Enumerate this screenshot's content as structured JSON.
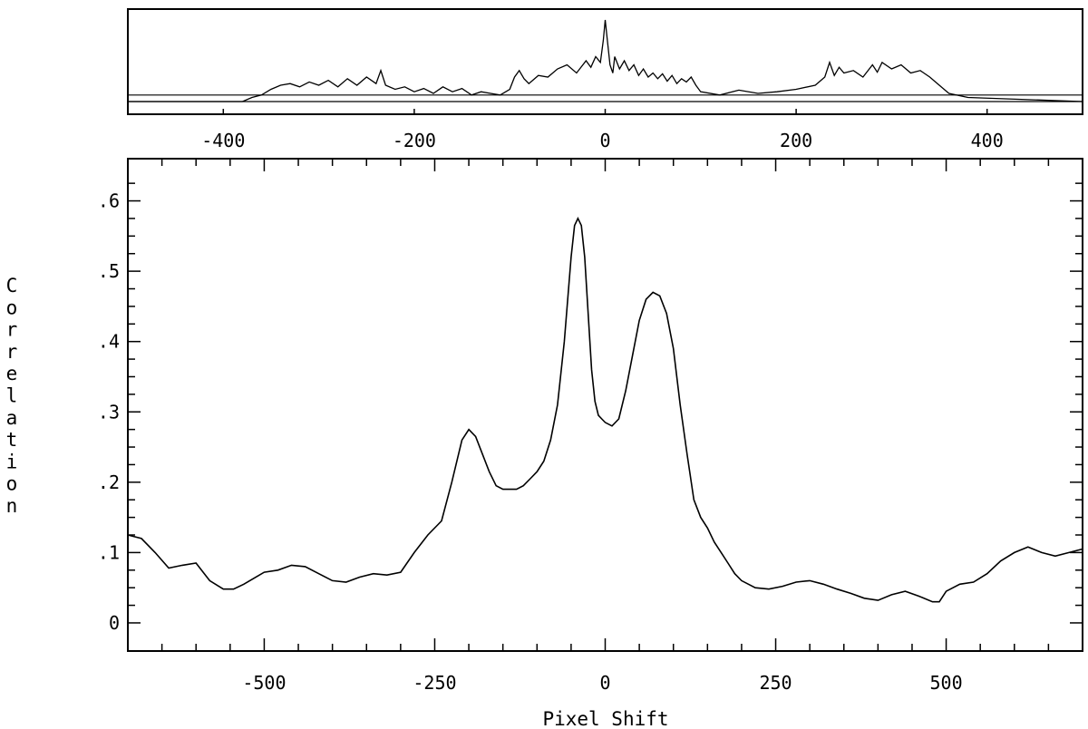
{
  "chart_data": [
    {
      "type": "line",
      "title": "",
      "xlabel": "",
      "ylabel": "",
      "xlim": [
        -500,
        500
      ],
      "x_ticks": [
        "-400",
        "-200",
        "0",
        "200",
        "400"
      ],
      "x_tick_values": [
        -400,
        -200,
        0,
        200,
        400
      ],
      "grid": false,
      "baseline_levels": [
        0.08,
        0.0
      ],
      "series": [
        {
          "x": [
            -500,
            -380,
            -370,
            -360,
            -350,
            -340,
            -330,
            -320,
            -310,
            -300,
            -290,
            -280,
            -270,
            -260,
            -250,
            -240,
            -235,
            -230,
            -220,
            -210,
            -200,
            -190,
            -180,
            -170,
            -160,
            -150,
            -140,
            -130,
            -120,
            -110,
            -100,
            -95,
            -90,
            -85,
            -80,
            -70,
            -60,
            -50,
            -40,
            -30,
            -20,
            -15,
            -10,
            -5,
            -2,
            0,
            2,
            5,
            8,
            10,
            15,
            20,
            25,
            30,
            35,
            40,
            45,
            50,
            55,
            60,
            65,
            70,
            75,
            80,
            85,
            90,
            95,
            100,
            120,
            140,
            160,
            180,
            200,
            220,
            230,
            235,
            240,
            245,
            250,
            260,
            270,
            280,
            285,
            290,
            300,
            310,
            320,
            330,
            340,
            350,
            360,
            380,
            500
          ],
          "values": [
            0.0,
            0.0,
            0.05,
            0.08,
            0.15,
            0.2,
            0.22,
            0.18,
            0.24,
            0.2,
            0.26,
            0.18,
            0.28,
            0.2,
            0.3,
            0.22,
            0.38,
            0.2,
            0.15,
            0.18,
            0.12,
            0.16,
            0.1,
            0.18,
            0.12,
            0.16,
            0.08,
            0.12,
            0.1,
            0.08,
            0.15,
            0.3,
            0.38,
            0.28,
            0.22,
            0.32,
            0.3,
            0.4,
            0.45,
            0.35,
            0.5,
            0.42,
            0.55,
            0.48,
            0.75,
            1.0,
            0.78,
            0.45,
            0.35,
            0.55,
            0.4,
            0.5,
            0.38,
            0.45,
            0.32,
            0.4,
            0.3,
            0.35,
            0.28,
            0.34,
            0.25,
            0.32,
            0.22,
            0.28,
            0.24,
            0.3,
            0.2,
            0.12,
            0.08,
            0.14,
            0.1,
            0.12,
            0.15,
            0.2,
            0.3,
            0.48,
            0.32,
            0.42,
            0.35,
            0.38,
            0.3,
            0.45,
            0.36,
            0.48,
            0.4,
            0.45,
            0.35,
            0.38,
            0.3,
            0.2,
            0.1,
            0.05,
            0.0
          ]
        }
      ]
    },
    {
      "type": "line",
      "title": "",
      "xlabel": "Pixel Shift",
      "ylabel": "Correlation",
      "xlim": [
        -700,
        700
      ],
      "ylim": [
        -0.04,
        0.66
      ],
      "x_ticks": [
        "-500",
        "-250",
        "0",
        "250",
        "500"
      ],
      "x_tick_values": [
        -500,
        -250,
        0,
        250,
        500
      ],
      "y_ticks": [
        "0",
        ".1",
        ".2",
        ".3",
        ".4",
        ".5",
        ".6"
      ],
      "y_tick_values": [
        0,
        0.1,
        0.2,
        0.3,
        0.4,
        0.5,
        0.6
      ],
      "grid": false,
      "series": [
        {
          "x": [
            -700,
            -680,
            -660,
            -640,
            -620,
            -600,
            -580,
            -560,
            -545,
            -530,
            -500,
            -480,
            -460,
            -440,
            -420,
            -400,
            -380,
            -360,
            -340,
            -320,
            -300,
            -280,
            -260,
            -240,
            -225,
            -210,
            -200,
            -190,
            -180,
            -170,
            -160,
            -150,
            -140,
            -130,
            -120,
            -110,
            -100,
            -90,
            -80,
            -70,
            -60,
            -50,
            -45,
            -40,
            -35,
            -30,
            -25,
            -20,
            -15,
            -10,
            -5,
            0,
            10,
            20,
            30,
            40,
            50,
            60,
            70,
            80,
            90,
            100,
            110,
            120,
            130,
            140,
            150,
            160,
            170,
            180,
            190,
            200,
            220,
            240,
            260,
            280,
            300,
            320,
            340,
            360,
            380,
            400,
            420,
            440,
            460,
            480,
            490,
            500,
            520,
            540,
            560,
            580,
            600,
            620,
            640,
            660,
            680,
            700
          ],
          "values": [
            0.125,
            0.12,
            0.1,
            0.078,
            0.082,
            0.085,
            0.06,
            0.048,
            0.048,
            0.055,
            0.072,
            0.075,
            0.082,
            0.08,
            0.07,
            0.06,
            0.058,
            0.065,
            0.07,
            0.068,
            0.072,
            0.1,
            0.125,
            0.145,
            0.2,
            0.26,
            0.275,
            0.265,
            0.24,
            0.215,
            0.195,
            0.19,
            0.19,
            0.19,
            0.195,
            0.205,
            0.215,
            0.23,
            0.26,
            0.31,
            0.4,
            0.52,
            0.565,
            0.575,
            0.565,
            0.52,
            0.44,
            0.36,
            0.315,
            0.295,
            0.29,
            0.285,
            0.28,
            0.29,
            0.33,
            0.38,
            0.43,
            0.46,
            0.47,
            0.465,
            0.44,
            0.39,
            0.31,
            0.24,
            0.175,
            0.15,
            0.135,
            0.115,
            0.1,
            0.085,
            0.07,
            0.06,
            0.05,
            0.048,
            0.052,
            0.058,
            0.06,
            0.055,
            0.048,
            0.042,
            0.035,
            0.032,
            0.04,
            0.045,
            0.038,
            0.03,
            0.03,
            0.045,
            0.055,
            0.058,
            0.07,
            0.088,
            0.1,
            0.108,
            0.1,
            0.095,
            0.1,
            0.105
          ]
        }
      ]
    }
  ]
}
